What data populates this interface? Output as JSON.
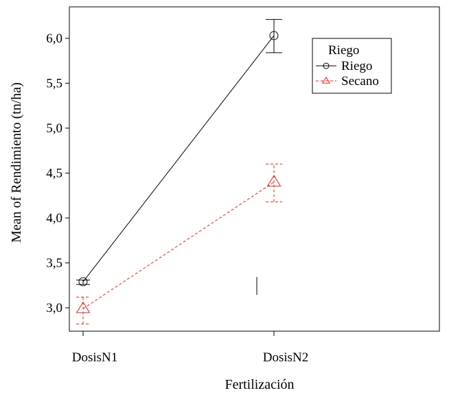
{
  "chart_data": {
    "type": "line",
    "title": "",
    "xlabel": "Fertilización",
    "ylabel": "Mean of Rendimiento (tn/ha)",
    "categories": [
      "DosisN1",
      "DosisN2"
    ],
    "ylim": [
      2.74,
      6.35
    ],
    "yticks": [
      3.0,
      3.5,
      4.0,
      4.5,
      5.0,
      5.5,
      6.0
    ],
    "ytick_labels": [
      "3,0",
      "3,5",
      "4,0",
      "4,5",
      "5,0",
      "5,5",
      "6,0"
    ],
    "grid": false,
    "legend": {
      "title": "Riego",
      "position": "top-right"
    },
    "series": [
      {
        "name": "Riego",
        "color": "#000000",
        "line_style": "solid",
        "marker": "circle",
        "values": [
          3.29,
          6.03
        ],
        "error_low": [
          3.26,
          5.84
        ],
        "error_high": [
          3.31,
          6.21
        ]
      },
      {
        "name": "Secano",
        "color": "#e8201a",
        "line_style": "dashed",
        "marker": "triangle",
        "values": [
          2.99,
          4.4
        ],
        "error_low": [
          2.82,
          4.18
        ],
        "error_high": [
          3.12,
          4.6
        ]
      }
    ]
  }
}
